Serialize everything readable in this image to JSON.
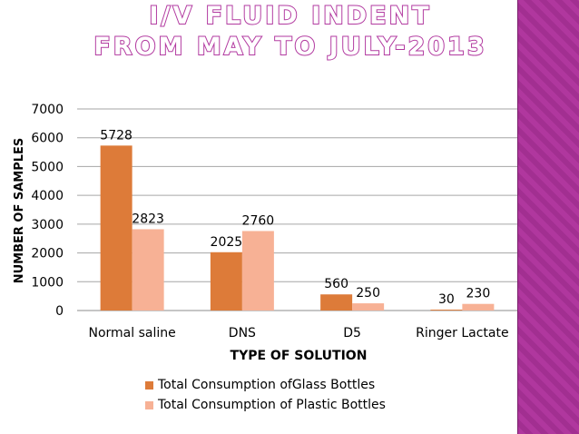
{
  "slide": {
    "title_line1": "I/V FLUID INDENT",
    "title_line2": "FROM MAY TO JULY-2013"
  },
  "colors": {
    "series_glass": "#dd7b39",
    "series_plastic": "#f7b195",
    "side_band": "#b0379e"
  },
  "chart_data": {
    "type": "bar",
    "title": "",
    "xlabel": "TYPE OF SOLUTION",
    "ylabel": "NUMBER OF SAMPLES",
    "ylim": [
      0,
      7000
    ],
    "yticks": [
      0,
      1000,
      2000,
      3000,
      4000,
      5000,
      6000,
      7000
    ],
    "grid": true,
    "legend_position": "bottom",
    "categories": [
      "Normal saline",
      "DNS",
      "D5",
      "Ringer Lactate"
    ],
    "series": [
      {
        "name": "Total Consumption ofGlass Bottles",
        "values": [
          5728,
          2025,
          560,
          30
        ]
      },
      {
        "name": "Total Consumption of Plastic Bottles",
        "values": [
          2823,
          2760,
          250,
          230
        ]
      }
    ]
  }
}
